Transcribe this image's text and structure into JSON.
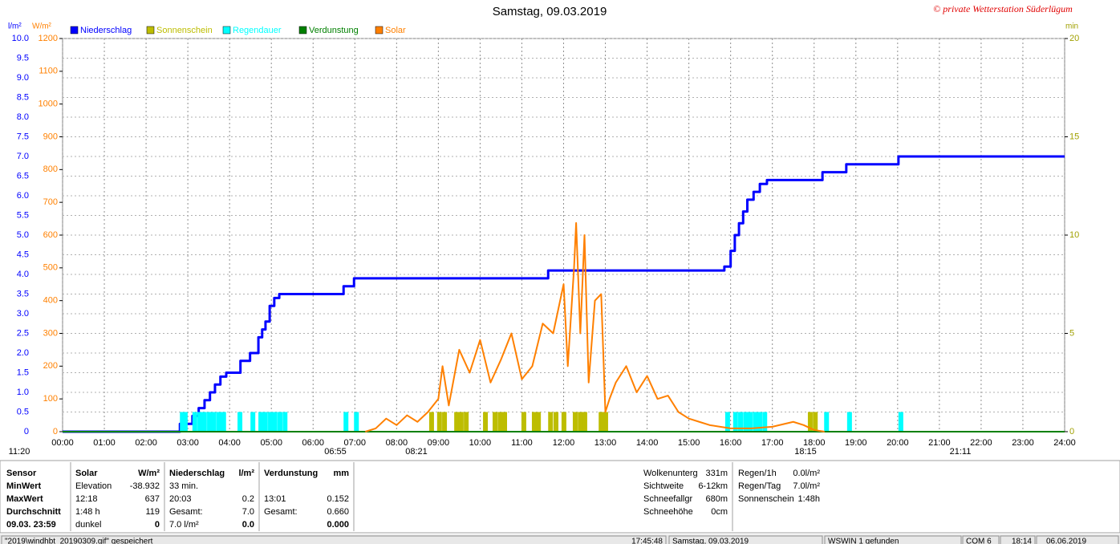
{
  "chart_data": {
    "type": "line",
    "title": "Samstag, 09.03.2019",
    "copyright": "© private Wetterstation Süderlügum",
    "y_unit": "l/m²",
    "y2_unit": "W/m²",
    "y3_unit": "min",
    "xlim": [
      0,
      24
    ],
    "xticks": [
      {
        "value": 0,
        "label": "00:00"
      },
      {
        "value": 1,
        "label": "01:00"
      },
      {
        "value": 2,
        "label": "02:00"
      },
      {
        "value": 3,
        "label": "03:00"
      },
      {
        "value": 4,
        "label": "04:00"
      },
      {
        "value": 5,
        "label": "05:00"
      },
      {
        "value": 6,
        "label": "06:00"
      },
      {
        "value": 7,
        "label": "07:00"
      },
      {
        "value": 8,
        "label": "08:00"
      },
      {
        "value": 9,
        "label": "09:00"
      },
      {
        "value": 10,
        "label": "10:00"
      },
      {
        "value": 11,
        "label": "11:00"
      },
      {
        "value": 12,
        "label": "12:00"
      },
      {
        "value": 13,
        "label": "13:00"
      },
      {
        "value": 14,
        "label": "14:00"
      },
      {
        "value": 15,
        "label": "15:00"
      },
      {
        "value": 16,
        "label": "16:00"
      },
      {
        "value": 17,
        "label": "17:00"
      },
      {
        "value": 18,
        "label": "18:00"
      },
      {
        "value": 19,
        "label": "19:00"
      },
      {
        "value": 20,
        "label": "20:00"
      },
      {
        "value": 21,
        "label": "21:00"
      },
      {
        "value": 22,
        "label": "22:00"
      },
      {
        "value": 23,
        "label": "23:00"
      },
      {
        "value": 24,
        "label": "24:00"
      }
    ],
    "ylim": [
      0,
      10
    ],
    "yticks": [
      0,
      0.5,
      {
        "value": 1,
        "label": "1.0"
      },
      1.5,
      {
        "value": 2,
        "label": "2.0"
      },
      2.5,
      {
        "value": 3,
        "label": "3.0"
      },
      3.5,
      {
        "value": 4,
        "label": "4.0"
      },
      4.5,
      {
        "value": 5,
        "label": "5.0"
      },
      5.5,
      {
        "value": 6,
        "label": "6.0"
      },
      6.5,
      {
        "value": 7,
        "label": "7.0"
      },
      7.5,
      {
        "value": 8,
        "label": "8.0"
      },
      8.5,
      {
        "value": 9,
        "label": "9.0"
      },
      9.5,
      {
        "value": 10,
        "label": "10.0"
      }
    ],
    "y2lim": [
      0,
      1200
    ],
    "y2ticks": [
      0,
      100,
      200,
      300,
      400,
      500,
      600,
      700,
      800,
      900,
      1000,
      1100,
      1200
    ],
    "y3lim": [
      0,
      20
    ],
    "y3ticks": [
      0,
      5,
      10,
      15,
      20
    ],
    "grid": true,
    "series": [
      {
        "name": "Niederschlag",
        "color": "#0000ff",
        "step": true,
        "axis": "y",
        "x": [
          0,
          2.81,
          3.11,
          3.26,
          3.4,
          3.53,
          3.65,
          3.78,
          3.92,
          4.26,
          4.49,
          4.69,
          4.78,
          4.86,
          4.96,
          5.07,
          5.19,
          6.73,
          6.98,
          11.63,
          15.85,
          16.0,
          16.1,
          16.2,
          16.3,
          16.4,
          16.55,
          16.7,
          16.87,
          18.2,
          18.77,
          20.02,
          24
        ],
        "values": [
          0,
          0.2,
          0.4,
          0.6,
          0.8,
          1.0,
          1.2,
          1.4,
          1.5,
          1.8,
          2.0,
          2.4,
          2.6,
          2.8,
          3.2,
          3.4,
          3.5,
          3.7,
          3.9,
          4.1,
          4.2,
          4.6,
          5.0,
          5.3,
          5.6,
          5.9,
          6.1,
          6.3,
          6.4,
          6.6,
          6.8,
          7.0,
          7.0
        ]
      },
      {
        "name": "Sonnenschein",
        "color": "#bdbd00",
        "type": "bar",
        "axis": "y3",
        "x": [
          8.78,
          8.97,
          9.09,
          9.38,
          9.49,
          9.61,
          10.07,
          10.3,
          10.42,
          10.53,
          10.99,
          11.24,
          11.34,
          11.63,
          11.76,
          11.95,
          12.22,
          12.34,
          12.45,
          12.84,
          12.95,
          17.85,
          17.97
        ],
        "values": [
          1,
          1,
          1,
          1,
          1,
          1,
          1,
          1,
          1,
          1,
          1,
          1,
          1,
          1,
          1,
          1,
          1,
          1,
          1,
          1,
          1,
          1,
          1
        ]
      },
      {
        "name": "Regendauer",
        "color": "#00ffff",
        "type": "bar",
        "axis": "y3",
        "x": [
          2.81,
          2.88,
          3.11,
          3.23,
          3.34,
          3.46,
          3.57,
          3.69,
          3.8,
          4.19,
          4.5,
          4.69,
          4.8,
          4.92,
          5.03,
          5.15,
          5.27,
          6.73,
          6.98,
          15.87,
          16.06,
          16.18,
          16.3,
          16.41,
          16.53,
          16.64,
          16.76,
          18.24,
          18.79,
          20.02
        ],
        "values": [
          1,
          1,
          1,
          1,
          1,
          1,
          1,
          1,
          1,
          1,
          1,
          1,
          1,
          1,
          1,
          1,
          1,
          1,
          1,
          1,
          1,
          1,
          1,
          1,
          1,
          1,
          1,
          1,
          1,
          1
        ]
      },
      {
        "name": "Verdunstung",
        "color": "#008000",
        "axis": "y",
        "x": [
          0,
          24
        ],
        "values": [
          0,
          0
        ]
      },
      {
        "name": "Solar",
        "color": "#ff8000",
        "axis": "y2",
        "x": [
          7.25,
          7.5,
          7.75,
          8,
          8.25,
          8.5,
          8.75,
          9,
          9.1,
          9.25,
          9.5,
          9.75,
          10,
          10.25,
          10.5,
          10.75,
          11,
          11.25,
          11.5,
          11.75,
          12,
          12.1,
          12.25,
          12.3,
          12.4,
          12.5,
          12.6,
          12.75,
          12.9,
          13,
          13.1,
          13.25,
          13.5,
          13.75,
          14,
          14.25,
          14.5,
          14.75,
          15,
          15.25,
          15.5,
          15.75,
          16,
          16.5,
          17,
          17.5,
          17.75,
          18,
          18.25
        ],
        "values": [
          0,
          10,
          40,
          20,
          50,
          30,
          60,
          100,
          200,
          80,
          250,
          180,
          280,
          150,
          220,
          300,
          160,
          200,
          330,
          300,
          450,
          200,
          500,
          637,
          300,
          600,
          150,
          400,
          420,
          60,
          100,
          150,
          200,
          120,
          170,
          100,
          110,
          60,
          40,
          30,
          20,
          15,
          10,
          10,
          15,
          30,
          20,
          5,
          0
        ]
      }
    ],
    "annotations": [
      "11:20",
      "06:55",
      "08:21",
      "18:15",
      "21:11"
    ]
  },
  "stats": {
    "labels": [
      "Sensor",
      "MinWert",
      "MaxWert",
      "Durchschnitt",
      "09.03.  23:59"
    ],
    "blocks": [
      {
        "title": "Solar",
        "unit": "W/m²",
        "rows": {
          "min": {
            "l": "Elevation",
            "r": "-38.932"
          },
          "max": {
            "l": "12:18",
            "r": "637"
          },
          "avg": {
            "l": "1:48 h",
            "r": "119"
          },
          "day": {
            "l": "dunkel",
            "r": "0"
          }
        }
      },
      {
        "title": "Niederschlag",
        "unit": "l/m²",
        "rows": {
          "min": {
            "l": "33 min."
          },
          "max": {
            "l": "20:03",
            "r": "0.2"
          },
          "avg": {
            "l": "Gesamt:",
            "r": "7.0"
          },
          "day": {
            "l": "7.0 l/m²",
            "r": "0.0"
          }
        }
      },
      {
        "title": "Verdunstung",
        "unit": "mm",
        "rows": {
          "max": {
            "l": "13:01",
            "r": "0.152"
          },
          "avg": {
            "l": "Gesamt:",
            "r": "0.660"
          },
          "day": {
            "r": "0.000"
          }
        }
      }
    ],
    "extra1": [
      [
        "Wolkenunterg",
        "331m"
      ],
      [
        "Sichtweite",
        "6-12km"
      ],
      [
        "Schneefallgr",
        "680m"
      ],
      [
        "Schneehöhe",
        "0cm"
      ]
    ],
    "extra2": [
      [
        "Regen/1h",
        "0.0l/m²"
      ],
      [
        "Regen/Tag",
        "7.0l/m²"
      ],
      [
        "Sonnenschein",
        "1:48h"
      ]
    ]
  },
  "status_bar": [
    "\"2019\\windhbt_20190309.gif\" gespeichert",
    "17:45:48",
    "Samstag, 09.03.2019",
    "WSWIN 1 gefunden",
    "COM 6",
    "18:14",
    "06.06.2019"
  ]
}
